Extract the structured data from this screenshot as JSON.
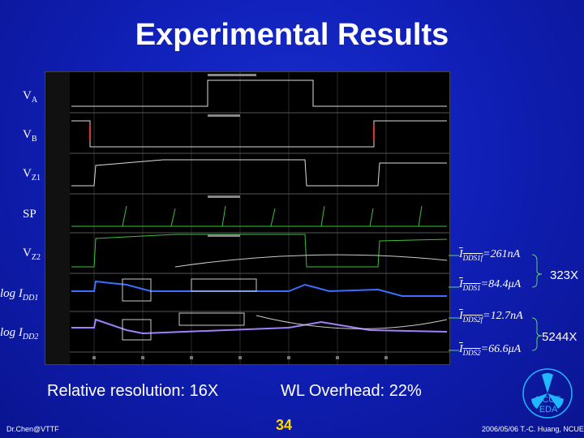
{
  "slide": {
    "title": "Experimental Results",
    "page_number": "34",
    "left_footer": "Dr.Chen@VTTF",
    "right_footer": "2006/05/06 T.-C. Huang, NCUE",
    "logo_text_line1": "NCUE",
    "logo_text_line2": "EDA"
  },
  "signals": {
    "va": {
      "base": "V",
      "sub": "A"
    },
    "vb": {
      "base": "V",
      "sub": "B"
    },
    "vz1": {
      "base": "V",
      "sub": "Z1"
    },
    "sp": {
      "base": "SP",
      "sub": ""
    },
    "vz2": {
      "base": "V",
      "sub": "Z2"
    },
    "log_idd1": {
      "base": "log I",
      "sub": "DD1"
    },
    "log_idd2": {
      "base": "log I",
      "sub": "DD2"
    }
  },
  "currents": {
    "iddslf": {
      "base": "I",
      "sub": "DDS1f",
      "value": "=261nA"
    },
    "idds1": {
      "base": "I",
      "sub": "DDS1",
      "value": "=84.4μA"
    },
    "idds2f": {
      "base": "I",
      "sub": "DDS2f",
      "value": "=12.7nA"
    },
    "idds2": {
      "base": "I",
      "sub": "DDS2",
      "value": "=66.6μA"
    }
  },
  "ratios": {
    "first": "323X",
    "second": "5244X"
  },
  "summary": {
    "resolution": "Relative resolution: 16X",
    "overhead": "WL Overhead: 22%"
  },
  "colors": {
    "background": "#1020b8",
    "title": "#ffffff",
    "page_number": "#ffd700",
    "logo": "#1fb8ff"
  }
}
